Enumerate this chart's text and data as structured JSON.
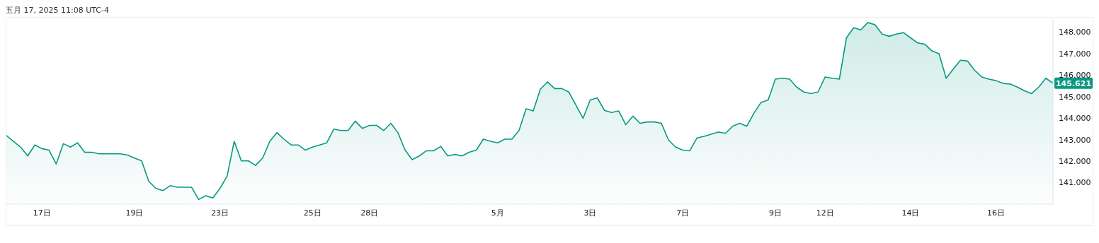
{
  "chart_data": {
    "type": "area",
    "title": "五月 17, 2025 11:08 UTC-4",
    "categories": [
      null,
      null,
      null,
      null,
      null,
      "17日",
      null,
      null,
      null,
      null,
      null,
      null,
      null,
      null,
      null,
      null,
      null,
      null,
      "19日",
      null,
      null,
      null,
      null,
      null,
      null,
      null,
      null,
      null,
      null,
      null,
      "23日",
      null,
      null,
      null,
      null,
      null,
      null,
      null,
      null,
      null,
      null,
      null,
      null,
      "25日",
      null,
      null,
      null,
      null,
      null,
      null,
      null,
      "28日",
      null,
      null,
      null,
      null,
      null,
      null,
      null,
      null,
      null,
      null,
      null,
      null,
      null,
      null,
      null,
      null,
      null,
      "5月",
      null,
      null,
      null,
      null,
      null,
      null,
      null,
      null,
      null,
      null,
      null,
      null,
      "3日",
      null,
      null,
      null,
      null,
      null,
      null,
      null,
      null,
      null,
      null,
      null,
      null,
      "7日",
      null,
      null,
      null,
      null,
      null,
      null,
      null,
      null,
      null,
      null,
      null,
      null,
      "9日",
      null,
      null,
      null,
      null,
      null,
      null,
      "12日",
      null,
      null,
      null,
      null,
      null,
      null,
      null,
      null,
      null,
      null,
      null,
      "14日",
      null,
      null,
      null,
      null,
      null,
      null,
      null,
      null,
      null,
      null,
      null,
      "16日",
      null,
      null,
      null,
      null,
      null,
      null,
      null,
      null
    ],
    "series": [
      {
        "color": "#089981",
        "values": [
          143.19,
          142.92,
          142.65,
          142.24,
          142.75,
          142.58,
          142.51,
          141.87,
          142.81,
          142.65,
          142.85,
          142.41,
          142.41,
          142.34,
          142.34,
          142.34,
          142.34,
          142.28,
          142.14,
          142.01,
          141.06,
          140.73,
          140.63,
          140.86,
          140.79,
          140.79,
          140.79,
          140.22,
          140.39,
          140.29,
          140.73,
          141.3,
          142.92,
          142.01,
          142.01,
          141.8,
          142.14,
          142.92,
          143.32,
          143.02,
          142.75,
          142.75,
          142.51,
          142.65,
          142.75,
          142.85,
          143.49,
          143.42,
          143.42,
          143.86,
          143.52,
          143.66,
          143.66,
          143.42,
          143.76,
          143.32,
          142.51,
          142.07,
          142.24,
          142.48,
          142.48,
          142.68,
          142.24,
          142.31,
          142.24,
          142.41,
          142.51,
          143.02,
          142.92,
          142.85,
          143.02,
          143.02,
          143.42,
          144.43,
          144.33,
          145.34,
          145.68,
          145.37,
          145.37,
          145.21,
          144.6,
          143.99,
          144.84,
          144.94,
          144.36,
          144.26,
          144.33,
          143.69,
          144.09,
          143.76,
          143.82,
          143.82,
          143.76,
          142.98,
          142.65,
          142.51,
          142.48,
          143.08,
          143.15,
          143.25,
          143.35,
          143.29,
          143.62,
          143.76,
          143.62,
          144.23,
          144.73,
          144.84,
          145.81,
          145.85,
          145.81,
          145.44,
          145.21,
          145.14,
          145.21,
          145.91,
          145.85,
          145.81,
          147.73,
          148.2,
          148.1,
          148.44,
          148.34,
          147.9,
          147.8,
          147.9,
          147.97,
          147.73,
          147.49,
          147.43,
          147.12,
          146.99,
          145.85,
          146.28,
          146.69,
          146.65,
          146.22,
          145.91,
          145.81,
          145.74,
          145.61,
          145.58,
          145.44,
          145.27,
          145.14,
          145.44,
          145.85,
          145.621
        ]
      }
    ],
    "ylim": [
      140,
      148.6
    ],
    "yticks": [
      {
        "value": 141,
        "label": "141.000"
      },
      {
        "value": 142,
        "label": "142.000"
      },
      {
        "value": 143,
        "label": "143.000"
      },
      {
        "value": 144,
        "label": "144.000"
      },
      {
        "value": 145,
        "label": "145.000"
      },
      {
        "value": 146,
        "label": "146.000"
      },
      {
        "value": 147,
        "label": "147.000"
      },
      {
        "value": 148,
        "label": "148.000"
      }
    ],
    "annotations": [
      "145.621"
    ]
  }
}
